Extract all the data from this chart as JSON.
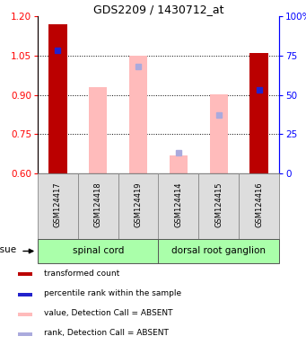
{
  "title": "GDS2209 / 1430712_at",
  "samples": [
    "GSM124417",
    "GSM124418",
    "GSM124419",
    "GSM124414",
    "GSM124415",
    "GSM124416"
  ],
  "ylim": [
    0.6,
    1.2
  ],
  "yticks": [
    0.6,
    0.75,
    0.9,
    1.05,
    1.2
  ],
  "y2lim": [
    0,
    100
  ],
  "y2ticks": [
    0,
    25,
    50,
    75,
    100
  ],
  "red_bars": {
    "GSM124417": 1.17,
    "GSM124416": 1.06
  },
  "pink_bars": {
    "GSM124418": 0.93,
    "GSM124419": 1.05,
    "GSM124414": 0.67,
    "GSM124415": 0.9
  },
  "blue_squares": {
    "GSM124417": 78,
    "GSM124416": 53
  },
  "light_blue_squares": {
    "GSM124419": 68,
    "GSM124414": 13,
    "GSM124415": 37
  },
  "bar_width": 0.45,
  "bar_color_red": "#bb0000",
  "bar_color_pink": "#ffbbbb",
  "square_color_blue": "#2222cc",
  "square_color_light_blue": "#aaaadd",
  "group_color": "#aaffaa",
  "label_tissue": "tissue",
  "group_info": [
    {
      "label": "spinal cord",
      "start": 0,
      "end": 2
    },
    {
      "label": "dorsal root ganglion",
      "start": 3,
      "end": 5
    }
  ],
  "legend_items": [
    {
      "label": "transformed count",
      "color": "#bb0000"
    },
    {
      "label": "percentile rank within the sample",
      "color": "#2222cc"
    },
    {
      "label": "value, Detection Call = ABSENT",
      "color": "#ffbbbb"
    },
    {
      "label": "rank, Detection Call = ABSENT",
      "color": "#aaaadd"
    }
  ]
}
